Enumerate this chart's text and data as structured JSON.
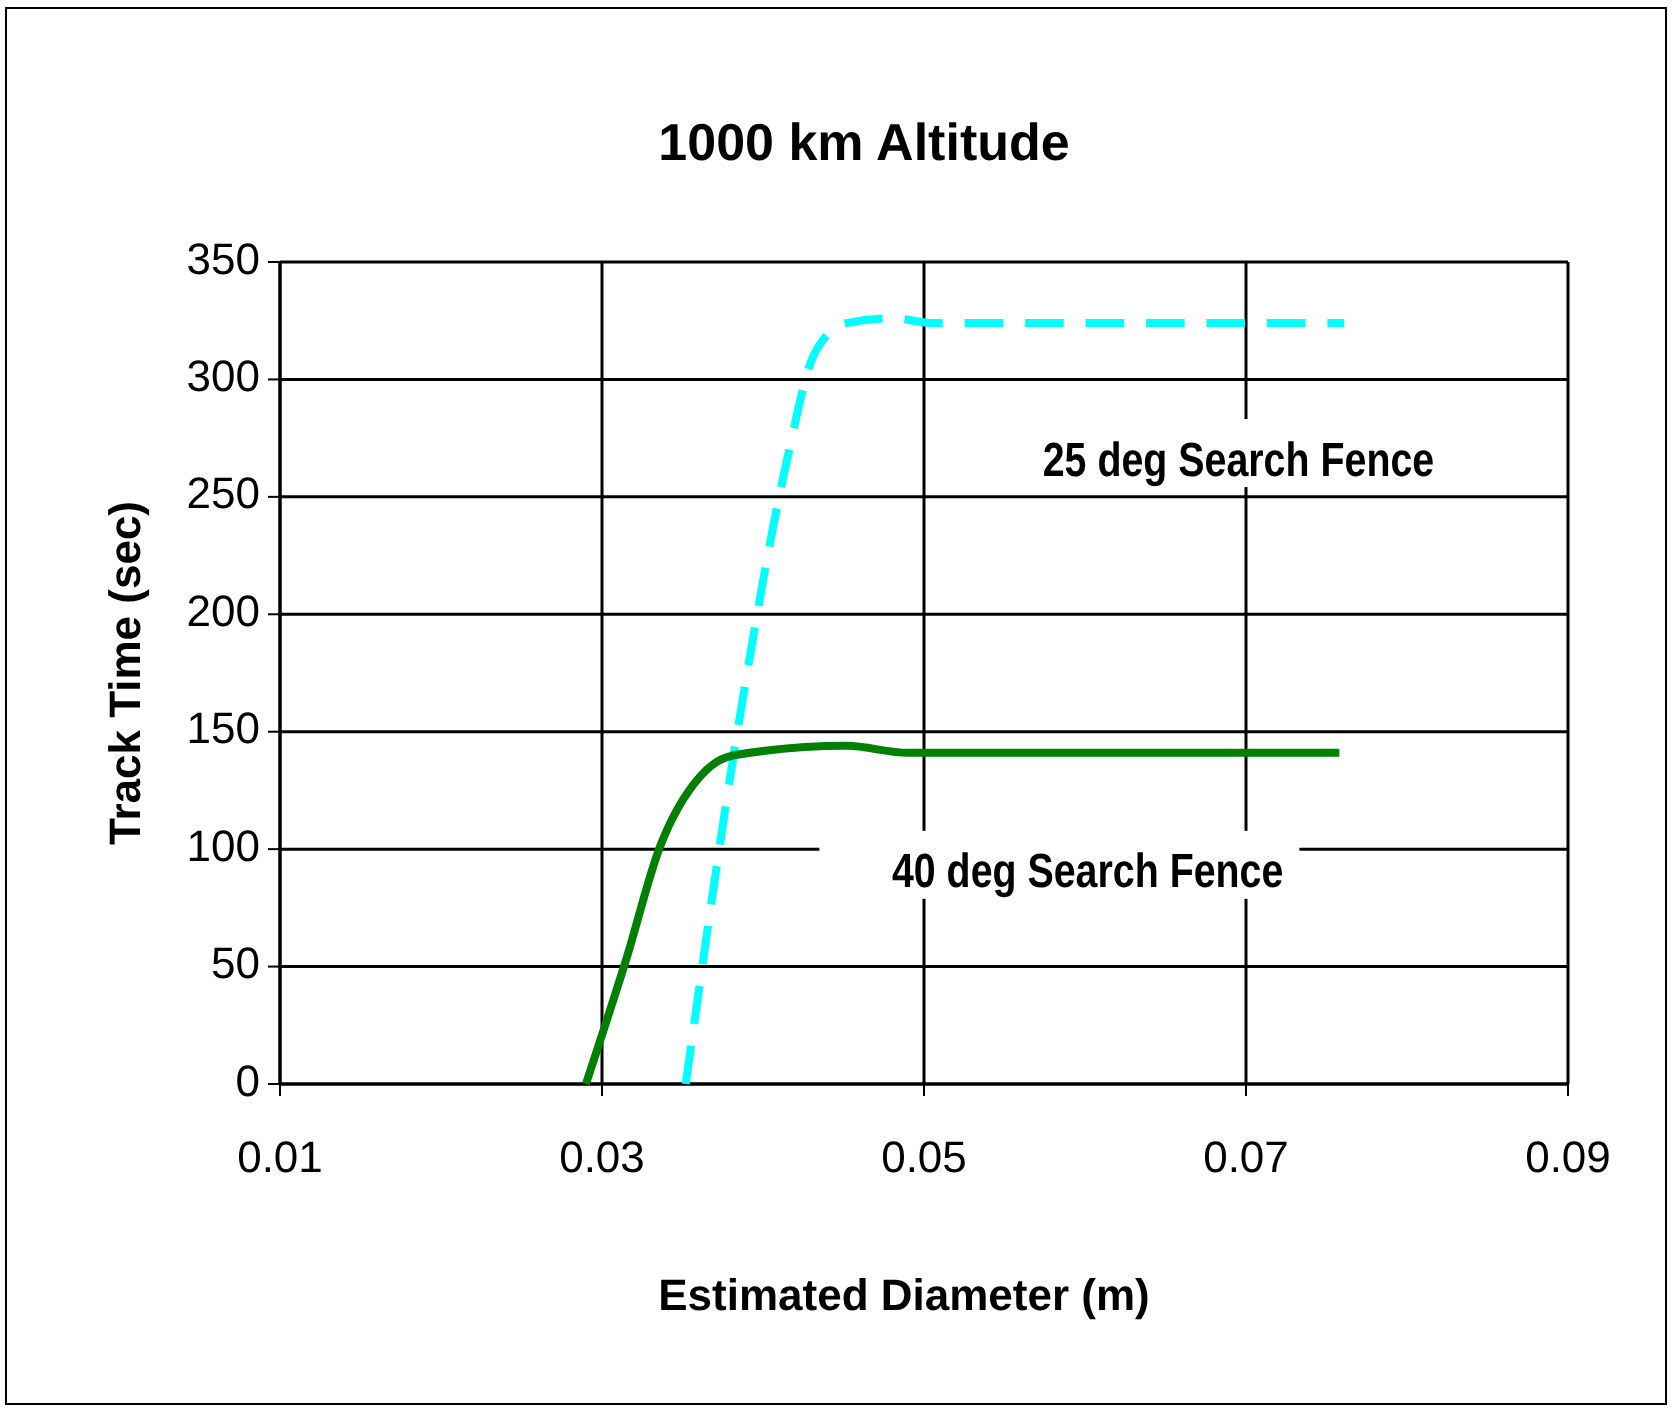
{
  "chart_data": {
    "type": "line",
    "title": "1000 km Altitude",
    "xlabel": "Estimated Diameter (m)",
    "ylabel": "Track Time (sec)",
    "xlim": [
      0.01,
      0.09
    ],
    "xticks": [
      0.01,
      0.03,
      0.05,
      0.07,
      0.09
    ],
    "ylim": [
      0,
      350
    ],
    "yticks": [
      0,
      50,
      100,
      150,
      200,
      250,
      300,
      350
    ],
    "grid": true,
    "series": [
      {
        "name": "25 deg Search Fence",
        "color": "#00ffff",
        "line_style": "dashed",
        "x": [
          0.0352,
          0.0386,
          0.0415,
          0.0432,
          0.0452,
          0.0481,
          0.0506,
          0.0761
        ],
        "values": [
          0,
          158,
          266,
          311,
          324,
          326,
          324,
          324
        ]
      },
      {
        "name": "40 deg Search Fence",
        "color": "#008000",
        "line_style": "solid",
        "x": [
          0.029,
          0.0315,
          0.0336,
          0.0361,
          0.0382,
          0.0452,
          0.049,
          0.0758
        ],
        "values": [
          0,
          53,
          101,
          131,
          140,
          144,
          141,
          141
        ]
      }
    ]
  }
}
